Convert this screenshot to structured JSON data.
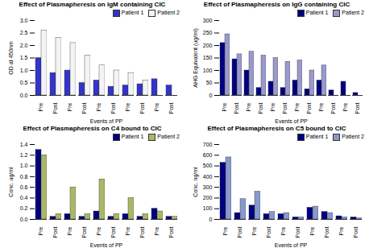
{
  "chart_data": [
    {
      "type": "bar",
      "title": "Effect of Plasmapheresis on IgM containing CIC",
      "x_label": "Events of PP",
      "y_label": "OD at 450nm",
      "categories": [
        "Pre",
        "Post",
        "Pre",
        "Post",
        "Pre",
        "Post",
        "Pre",
        "Post",
        "Pre",
        "Post"
      ],
      "series": [
        {
          "name": "Patient 1",
          "color": "#3333cc",
          "values": [
            1.5,
            0.9,
            1.0,
            0.5,
            0.6,
            0.35,
            0.4,
            0.45,
            0.65,
            0.4
          ]
        },
        {
          "name": "Patient 2",
          "color": "#f4f4f4",
          "values": [
            2.6,
            2.3,
            2.1,
            1.6,
            1.2,
            1.0,
            0.9,
            0.6,
            null,
            null
          ]
        }
      ],
      "ylim": [
        0,
        3
      ],
      "yticks": [
        0,
        0.5,
        1,
        1.5,
        2,
        2.5,
        3
      ],
      "legend": "top-right"
    },
    {
      "type": "bar",
      "title": "Effect of Plasmapheresis on IgG containing CIC",
      "x_label": "Events of PP",
      "y_label": "AHG Equivalent (ug/ml)",
      "categories": [
        "Pre",
        "Post",
        "Pre",
        "Post",
        "Pre",
        "Post",
        "Pre",
        "Post",
        "Pre",
        "Post",
        "Pre",
        "Post"
      ],
      "series": [
        {
          "name": "Patient 1",
          "color": "#000080",
          "values": [
            210,
            145,
            100,
            30,
            55,
            30,
            60,
            25,
            60,
            20,
            55,
            10
          ]
        },
        {
          "name": "Patient 2",
          "color": "#9999cc",
          "values": [
            245,
            165,
            175,
            160,
            150,
            135,
            140,
            100,
            120,
            null,
            null,
            null
          ]
        }
      ],
      "ylim": [
        0,
        300
      ],
      "yticks": [
        0,
        50,
        100,
        150,
        200,
        250,
        300
      ],
      "legend": "top-right"
    },
    {
      "type": "bar",
      "title": "Effect of Plasmapheresis on C4 bound to CIC",
      "x_label": "Events of PP",
      "y_label": "Conc. ug/ml",
      "categories": [
        "Pre",
        "Post",
        "Pre",
        "Post",
        "Pre",
        "Post",
        "Pre",
        "Post",
        "Pre",
        "Post"
      ],
      "series": [
        {
          "name": "Patient 1",
          "color": "#000080",
          "values": [
            1.3,
            0.05,
            0.1,
            0.05,
            0.15,
            0.05,
            0.1,
            0.05,
            0.2,
            0.05
          ]
        },
        {
          "name": "Patient 2",
          "color": "#a8b868",
          "values": [
            1.2,
            0.1,
            0.6,
            0.1,
            0.75,
            0.1,
            0.4,
            0.1,
            0.15,
            0.05
          ]
        }
      ],
      "ylim": [
        0,
        1.4
      ],
      "yticks": [
        0,
        0.2,
        0.4,
        0.6,
        0.8,
        1,
        1.2,
        1.4
      ],
      "legend": "top-right"
    },
    {
      "type": "bar",
      "title": "Effect of Plasmapheresis on C5 bound to CIC",
      "x_label": "Events of PP",
      "y_label": "Conc. ng/ml",
      "categories": [
        "Pre",
        "Post",
        "Pre",
        "Post",
        "Pre",
        "Post",
        "Pre",
        "Post",
        "Pre",
        "Post"
      ],
      "series": [
        {
          "name": "Patient 1",
          "color": "#000080",
          "values": [
            530,
            60,
            130,
            50,
            50,
            20,
            110,
            70,
            30,
            20
          ]
        },
        {
          "name": "Patient 2",
          "color": "#8899cc",
          "values": [
            580,
            190,
            260,
            70,
            60,
            20,
            120,
            60,
            20,
            10
          ]
        }
      ],
      "ylim": [
        0,
        700
      ],
      "yticks": [
        0,
        100,
        200,
        300,
        400,
        500,
        600,
        700
      ],
      "legend": "top-right"
    }
  ]
}
